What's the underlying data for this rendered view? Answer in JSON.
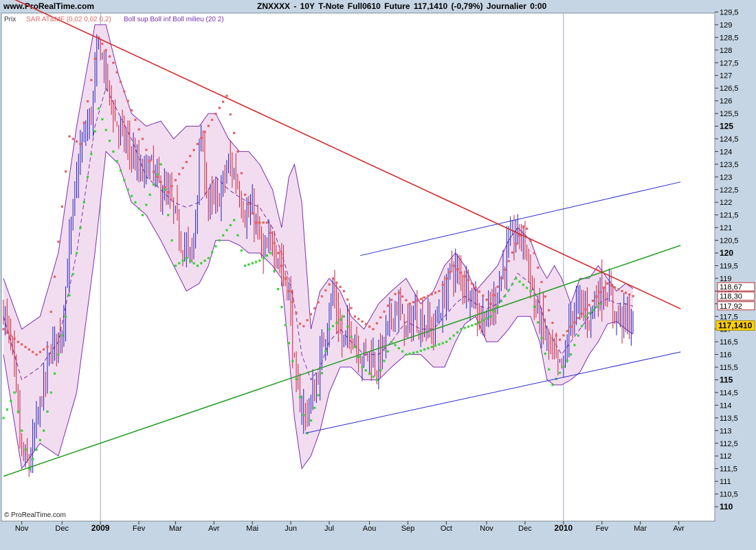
{
  "header": {
    "site": "www.ProRealTime.com",
    "title": "ZNXXXX - 10Y T-Note Full0610 Future     117,1410 (-0,79%)     Journalier  0:00"
  },
  "indicators": {
    "price_label": "Prix",
    "sar_label": "SAR AT&MF (0,02 0,02 0,2)",
    "boll_label": "Boll sup Boll inf Boll milieu (20 2)"
  },
  "copyright": "© ProRealTime.com",
  "colors": {
    "background": "#ffffff",
    "frame": "#c5d5e4",
    "band_fill": "#f2ddf0",
    "band_line": "#7a2fb0",
    "candle_up": "#1f1fb8",
    "candle_down": "#c8203a",
    "sar_up": "#33d433",
    "sar_down": "#e66060",
    "resistance": "#d42a2a",
    "support": "#2aa02a",
    "channel": "#2a2acc",
    "last_price_bg": "#ffd200"
  },
  "chart_data": {
    "type": "candlestick",
    "title": "ZNXXXX - 10Y T-Note Full0610 Future",
    "last_price": "117,1410",
    "change": "-0,79%",
    "period": "Journalier",
    "ylim": [
      110,
      129.5
    ],
    "y_ticks": [
      "110",
      "110,5",
      "111",
      "111,5",
      "112",
      "112,5",
      "113",
      "113,5",
      "114",
      "114,5",
      "115",
      "115,5",
      "116",
      "116,5",
      "117",
      "117,5",
      "118",
      "118,5",
      "119",
      "119,5",
      "120",
      "120,5",
      "121",
      "121,5",
      "122",
      "122,5",
      "123",
      "123,5",
      "124",
      "124,5",
      "125",
      "125,5",
      "126",
      "126,5",
      "127",
      "127,5",
      "128",
      "128,5",
      "129",
      "129,5"
    ],
    "y_bold_ticks": [
      "110",
      "115",
      "120",
      "125"
    ],
    "x_labels": [
      {
        "label": "Nov",
        "i": 10,
        "bold": false
      },
      {
        "label": "Dec",
        "i": 32,
        "bold": false
      },
      {
        "label": "2009",
        "i": 53,
        "bold": true
      },
      {
        "label": "Fev",
        "i": 74,
        "bold": false
      },
      {
        "label": "Mar",
        "i": 94,
        "bold": false
      },
      {
        "label": "Avr",
        "i": 115,
        "bold": false
      },
      {
        "label": "Mai",
        "i": 136,
        "bold": false
      },
      {
        "label": "Jun",
        "i": 157,
        "bold": false
      },
      {
        "label": "Jul",
        "i": 178,
        "bold": false
      },
      {
        "label": "Aou",
        "i": 200,
        "bold": false
      },
      {
        "label": "Sep",
        "i": 221,
        "bold": false
      },
      {
        "label": "Oct",
        "i": 242,
        "bold": false
      },
      {
        "label": "Nov",
        "i": 264,
        "bold": false
      },
      {
        "label": "Dec",
        "i": 285,
        "bold": false
      },
      {
        "label": "2010",
        "i": 306,
        "bold": true
      },
      {
        "label": "Fev",
        "i": 327,
        "bold": false
      },
      {
        "label": "Mar",
        "i": 348,
        "bold": false
      },
      {
        "label": "Avr",
        "i": 369,
        "bold": false
      }
    ],
    "n_bars": 345,
    "close_anchors": [
      [
        0,
        117.8
      ],
      [
        5,
        116.0
      ],
      [
        10,
        112.0
      ],
      [
        14,
        111.6
      ],
      [
        20,
        114.0
      ],
      [
        26,
        116.2
      ],
      [
        32,
        117.0
      ],
      [
        37,
        121.0
      ],
      [
        42,
        124.0
      ],
      [
        48,
        125.5
      ],
      [
        52,
        128.3
      ],
      [
        56,
        127.0
      ],
      [
        61,
        125.2
      ],
      [
        66,
        124.5
      ],
      [
        70,
        124.0
      ],
      [
        75,
        123.0
      ],
      [
        80,
        123.5
      ],
      [
        86,
        122.5
      ],
      [
        92,
        122.0
      ],
      [
        97,
        120.5
      ],
      [
        103,
        119.8
      ],
      [
        108,
        124.5
      ],
      [
        112,
        122.0
      ],
      [
        117,
        122.0
      ],
      [
        123,
        123.5
      ],
      [
        127,
        123.0
      ],
      [
        132,
        121.5
      ],
      [
        137,
        121.5
      ],
      [
        142,
        119.8
      ],
      [
        147,
        120.5
      ],
      [
        152,
        119.5
      ],
      [
        156,
        118.5
      ],
      [
        160,
        114.5
      ],
      [
        165,
        113.6
      ],
      [
        170,
        114.5
      ],
      [
        175,
        116.5
      ],
      [
        180,
        118.5
      ],
      [
        185,
        116.5
      ],
      [
        190,
        117.0
      ],
      [
        195,
        116.0
      ],
      [
        200,
        116.0
      ],
      [
        204,
        115.5
      ],
      [
        210,
        117.0
      ],
      [
        214,
        118.0
      ],
      [
        220,
        117.0
      ],
      [
        225,
        117.5
      ],
      [
        230,
        117.2
      ],
      [
        235,
        117.0
      ],
      [
        240,
        118.0
      ],
      [
        245,
        119.5
      ],
      [
        250,
        119.0
      ],
      [
        256,
        118.5
      ],
      [
        260,
        117.5
      ],
      [
        265,
        117.5
      ],
      [
        270,
        118.5
      ],
      [
        275,
        120.0
      ],
      [
        280,
        120.8
      ],
      [
        285,
        120.5
      ],
      [
        290,
        118.0
      ],
      [
        295,
        117.0
      ],
      [
        300,
        116.0
      ],
      [
        303,
        115.5
      ],
      [
        306,
        115.5
      ],
      [
        310,
        117.5
      ],
      [
        315,
        118.0
      ],
      [
        320,
        117.5
      ],
      [
        325,
        118.5
      ],
      [
        330,
        118.5
      ],
      [
        335,
        117.5
      ],
      [
        340,
        117.5
      ],
      [
        344,
        117.1
      ]
    ],
    "bollinger": {
      "upper": [
        [
          0,
          119
        ],
        [
          10,
          117
        ],
        [
          20,
          117.5
        ],
        [
          30,
          120
        ],
        [
          40,
          125
        ],
        [
          50,
          129
        ],
        [
          56,
          129
        ],
        [
          63,
          127
        ],
        [
          70,
          125.5
        ],
        [
          78,
          125
        ],
        [
          86,
          125.2
        ],
        [
          93,
          124.5
        ],
        [
          100,
          125
        ],
        [
          107,
          125
        ],
        [
          112,
          125.5
        ],
        [
          116,
          125.5
        ],
        [
          123,
          124.5
        ],
        [
          129,
          124
        ],
        [
          134,
          124
        ],
        [
          140,
          123.5
        ],
        [
          147,
          122.5
        ],
        [
          152,
          121
        ],
        [
          156,
          123
        ],
        [
          159,
          123.5
        ],
        [
          163,
          122
        ],
        [
          168,
          117
        ],
        [
          173,
          118.5
        ],
        [
          178,
          119
        ],
        [
          184,
          118.5
        ],
        [
          190,
          117.5
        ],
        [
          197,
          117
        ],
        [
          205,
          118
        ],
        [
          212,
          118.5
        ],
        [
          220,
          119
        ],
        [
          228,
          118
        ],
        [
          235,
          118.5
        ],
        [
          241,
          119.5
        ],
        [
          247,
          120
        ],
        [
          252,
          119.5
        ],
        [
          258,
          118.5
        ],
        [
          264,
          119
        ],
        [
          270,
          119.5
        ],
        [
          276,
          120.5
        ],
        [
          281,
          121
        ],
        [
          288,
          120.5
        ],
        [
          293,
          119.5
        ],
        [
          297,
          119
        ],
        [
          301,
          119.5
        ],
        [
          305,
          119
        ],
        [
          310,
          118
        ],
        [
          315,
          119
        ],
        [
          320,
          119
        ],
        [
          325,
          119.5
        ],
        [
          330,
          119
        ],
        [
          335,
          118.5
        ],
        [
          340,
          118.8
        ],
        [
          344,
          118.6
        ]
      ],
      "middle": [
        [
          0,
          117.5
        ],
        [
          10,
          115
        ],
        [
          20,
          115.5
        ],
        [
          30,
          116.5
        ],
        [
          40,
          120
        ],
        [
          50,
          125
        ],
        [
          56,
          126.5
        ],
        [
          63,
          125.5
        ],
        [
          70,
          124.5
        ],
        [
          78,
          123
        ],
        [
          86,
          122.5
        ],
        [
          93,
          122
        ],
        [
          100,
          121.8
        ],
        [
          107,
          122
        ],
        [
          112,
          122.5
        ],
        [
          116,
          123
        ],
        [
          123,
          122.5
        ],
        [
          129,
          122.2
        ],
        [
          134,
          122
        ],
        [
          140,
          121.8
        ],
        [
          147,
          121
        ],
        [
          152,
          120
        ],
        [
          156,
          119
        ],
        [
          159,
          118
        ],
        [
          163,
          116
        ],
        [
          168,
          115
        ],
        [
          173,
          115.5
        ],
        [
          178,
          116.5
        ],
        [
          184,
          117
        ],
        [
          190,
          116.5
        ],
        [
          197,
          116
        ],
        [
          205,
          116
        ],
        [
          212,
          116.5
        ],
        [
          220,
          117.3
        ],
        [
          228,
          117
        ],
        [
          235,
          117
        ],
        [
          241,
          117.5
        ],
        [
          247,
          118
        ],
        [
          252,
          118.3
        ],
        [
          258,
          118
        ],
        [
          264,
          117.8
        ],
        [
          270,
          118
        ],
        [
          276,
          118.5
        ],
        [
          281,
          119.2
        ],
        [
          288,
          118.8
        ],
        [
          293,
          118
        ],
        [
          297,
          117
        ],
        [
          301,
          116.5
        ],
        [
          305,
          116
        ],
        [
          310,
          116.5
        ],
        [
          315,
          117
        ],
        [
          320,
          117.5
        ],
        [
          325,
          118
        ],
        [
          330,
          118.2
        ],
        [
          335,
          118
        ],
        [
          340,
          118
        ],
        [
          344,
          117.9
        ]
      ],
      "lower": [
        [
          0,
          116
        ],
        [
          10,
          111.5
        ],
        [
          20,
          112.5
        ],
        [
          30,
          112
        ],
        [
          40,
          114.5
        ],
        [
          50,
          120
        ],
        [
          56,
          124
        ],
        [
          63,
          123.5
        ],
        [
          70,
          122
        ],
        [
          78,
          121.5
        ],
        [
          86,
          120.5
        ],
        [
          93,
          119.5
        ],
        [
          100,
          118.5
        ],
        [
          107,
          118.8
        ],
        [
          112,
          119.5
        ],
        [
          116,
          120.5
        ],
        [
          123,
          120.5
        ],
        [
          129,
          120.3
        ],
        [
          134,
          120
        ],
        [
          140,
          120
        ],
        [
          147,
          119.5
        ],
        [
          152,
          119
        ],
        [
          156,
          116
        ],
        [
          159,
          113.5
        ],
        [
          163,
          111.5
        ],
        [
          168,
          112
        ],
        [
          173,
          113
        ],
        [
          178,
          114.5
        ],
        [
          184,
          115.5
        ],
        [
          190,
          115.5
        ],
        [
          197,
          115
        ],
        [
          205,
          115
        ],
        [
          212,
          115.5
        ],
        [
          220,
          116
        ],
        [
          228,
          116
        ],
        [
          235,
          115.5
        ],
        [
          241,
          115.5
        ],
        [
          247,
          116.5
        ],
        [
          252,
          117.2
        ],
        [
          258,
          117.5
        ],
        [
          264,
          116.5
        ],
        [
          270,
          116.5
        ],
        [
          276,
          117
        ],
        [
          281,
          117.5
        ],
        [
          288,
          117.5
        ],
        [
          293,
          116.5
        ],
        [
          297,
          115
        ],
        [
          301,
          114.8
        ],
        [
          305,
          114.8
        ],
        [
          310,
          115
        ],
        [
          315,
          115.3
        ],
        [
          320,
          116
        ],
        [
          325,
          116.5
        ],
        [
          330,
          117.2
        ],
        [
          335,
          117.3
        ],
        [
          340,
          117
        ],
        [
          344,
          116.8
        ]
      ]
    },
    "sar": {
      "down": [
        [
          0,
          117
        ],
        [
          8,
          116.5
        ],
        [
          18,
          116
        ],
        [
          24,
          116.3
        ],
        [
          36,
          124.6
        ],
        [
          42,
          124.3
        ],
        [
          52,
          128.5
        ],
        [
          60,
          127.5
        ],
        [
          68,
          126
        ],
        [
          76,
          124.5
        ],
        [
          82,
          123.2
        ],
        [
          90,
          122.4
        ],
        [
          122,
          126.2
        ],
        [
          128,
          124
        ],
        [
          132,
          122.3
        ],
        [
          138,
          121.2
        ],
        [
          144,
          121.2
        ],
        [
          150,
          120
        ],
        [
          156,
          118.5
        ],
        [
          163,
          117
        ],
        [
          180,
          119
        ],
        [
          186,
          118.5
        ],
        [
          192,
          117.5
        ],
        [
          202,
          117
        ],
        [
          215,
          118.5
        ],
        [
          222,
          118
        ],
        [
          238,
          118.5
        ],
        [
          246,
          119.5
        ],
        [
          256,
          118.8
        ],
        [
          266,
          118
        ],
        [
          285,
          121.2
        ],
        [
          290,
          120
        ],
        [
          297,
          118
        ],
        [
          303,
          116.5
        ],
        [
          330,
          118.8
        ],
        [
          338,
          118.5
        ],
        [
          344,
          118.3
        ]
      ],
      "up": [
        [
          0,
          113.5
        ],
        [
          6,
          114.5
        ],
        [
          14,
          111.5
        ],
        [
          22,
          113
        ],
        [
          34,
          117.5
        ],
        [
          40,
          120
        ],
        [
          46,
          123
        ],
        [
          52,
          125.7
        ],
        [
          60,
          124
        ],
        [
          68,
          122.5
        ],
        [
          76,
          121.5
        ],
        [
          86,
          123.5
        ],
        [
          94,
          119.5
        ],
        [
          100,
          119.8
        ],
        [
          106,
          119.5
        ],
        [
          112,
          119.8
        ],
        [
          118,
          120.5
        ],
        [
          126,
          121.3
        ],
        [
          132,
          119.5
        ],
        [
          140,
          119.7
        ],
        [
          146,
          120
        ],
        [
          166,
          112.9
        ],
        [
          172,
          114.4
        ],
        [
          178,
          117
        ],
        [
          186,
          117.5
        ],
        [
          196,
          115.5
        ],
        [
          204,
          115
        ],
        [
          212,
          116.5
        ],
        [
          220,
          116
        ],
        [
          226,
          116.1
        ],
        [
          234,
          116.3
        ],
        [
          242,
          116.5
        ],
        [
          250,
          117
        ],
        [
          258,
          117.2
        ],
        [
          266,
          117.5
        ],
        [
          274,
          118.3
        ],
        [
          280,
          119
        ],
        [
          288,
          118.5
        ],
        [
          300,
          114.8
        ],
        [
          310,
          116
        ],
        [
          318,
          117.5
        ],
        [
          326,
          118
        ]
      ]
    },
    "trendlines": {
      "resistance": [
        [
          0,
          130.2
        ],
        [
          370,
          117.8
        ]
      ],
      "support": [
        [
          0,
          111.2
        ],
        [
          370,
          120.3
        ]
      ],
      "channel_upper": [
        [
          195,
          119.9
        ],
        [
          370,
          122.8
        ]
      ],
      "channel_lower": [
        [
          165,
          112.9
        ],
        [
          370,
          116.1
        ]
      ]
    },
    "price_boxes": [
      {
        "label": "118,67",
        "value": 118.67
      },
      {
        "label": "118,30",
        "value": 118.3
      },
      {
        "label": "117,92",
        "value": 117.92
      }
    ]
  }
}
